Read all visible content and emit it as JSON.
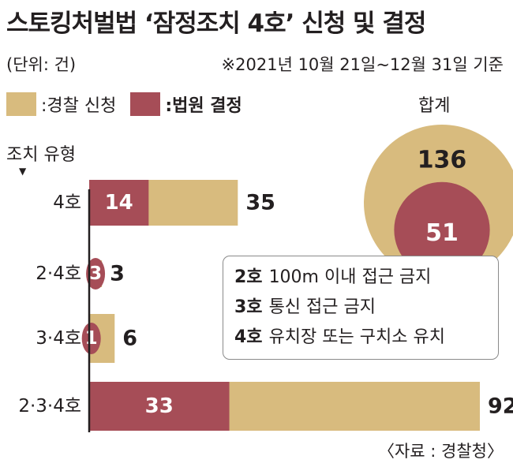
{
  "title": "스토킹처벌법 ‘잠정조치 4호’ 신청 및 결정",
  "unit_note": "(단위: 건)",
  "basis_note": "※2021년 10월 21일~12월 31일 기준",
  "legend": [
    {
      "label": ":경찰 신청",
      "color": "#d8bb7e"
    },
    {
      "label": ":법원 결정",
      "color": "#a64d57"
    }
  ],
  "total_label": "합계",
  "axis_title": "조치 유형",
  "axis_arrow": "▼",
  "colors": {
    "police": "#d8bb7e",
    "court": "#a64d57",
    "axis": "#231f20"
  },
  "chart_data": {
    "type": "bar",
    "orientation": "horizontal",
    "categories": [
      "4호",
      "2·4호",
      "3·4호",
      "2·3·4호"
    ],
    "series": [
      {
        "name": "경찰 신청",
        "values": [
          35,
          3,
          6,
          92
        ]
      },
      {
        "name": "법원 결정",
        "values": [
          14,
          3,
          1,
          33
        ]
      }
    ],
    "totals": {
      "경찰 신청": 136,
      "법원 결정": 51
    }
  },
  "notes": [
    {
      "key": "2호",
      "text": "100m 이내 접근 금지"
    },
    {
      "key": "3호",
      "text": "통신 접근 금지"
    },
    {
      "key": "4호",
      "text": "유치장 또는 구치소 유치"
    }
  ],
  "source": "〈자료 : 경찰청〉"
}
